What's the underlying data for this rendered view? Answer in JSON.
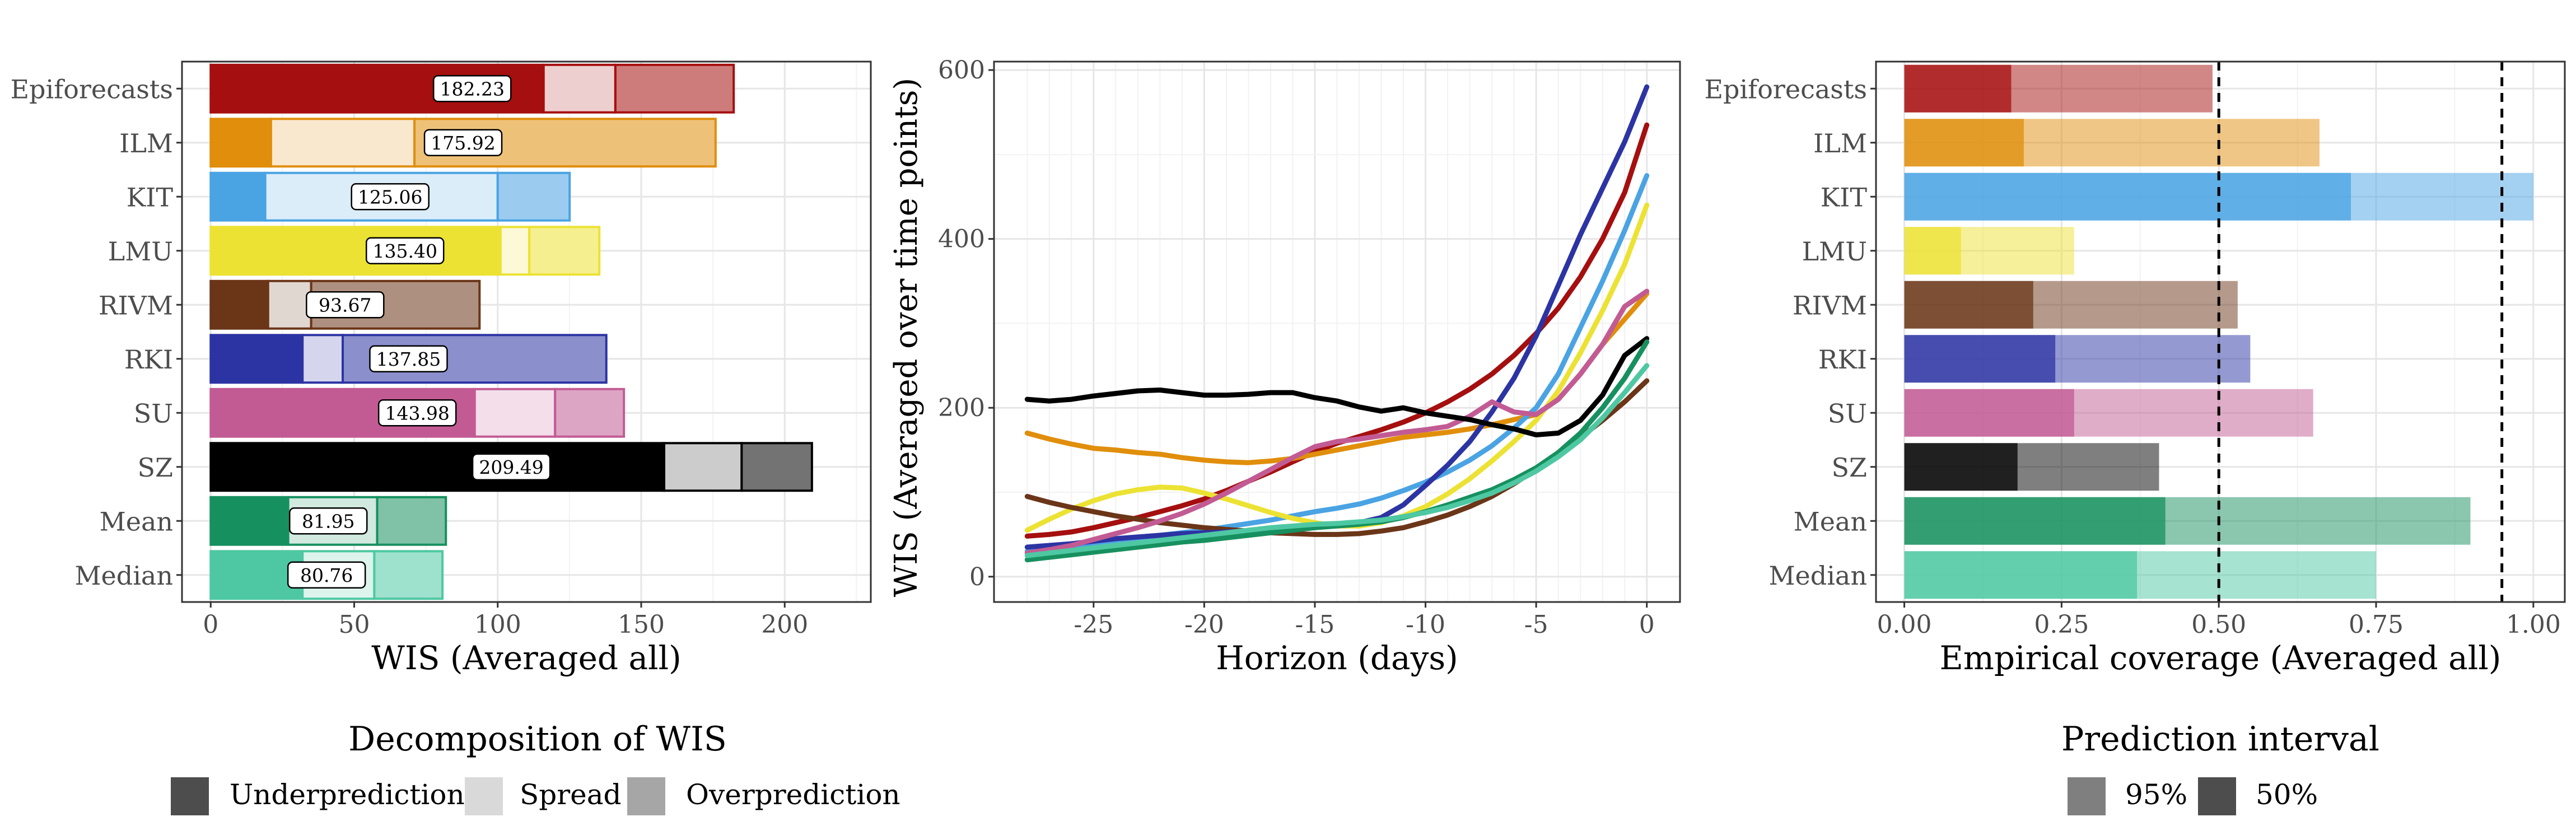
{
  "chart_data": [
    {
      "type": "bar",
      "subtype": "stacked-horizontal",
      "xlabel": "WIS (Averaged all)",
      "xlim": [
        -10,
        230
      ],
      "xticks": [
        0,
        50,
        100,
        150,
        200
      ],
      "grid": true,
      "models": [
        "Epiforecasts",
        "ILM",
        "KIT",
        "LMU",
        "RIVM",
        "RKI",
        "SU",
        "SZ",
        "Mean",
        "Median"
      ],
      "colors": [
        "#a50f0f",
        "#e08e0b",
        "#4aa3e3",
        "#ece233",
        "#6b3518",
        "#2c34a3",
        "#c25b94",
        "#000000",
        "#17905f",
        "#4ec8a2"
      ],
      "components": [
        "Underprediction",
        "Spread",
        "Overprediction"
      ],
      "underprediction": [
        116,
        21,
        19,
        101,
        20,
        32,
        92,
        158,
        27,
        32
      ],
      "spread": [
        25,
        50,
        81,
        10,
        15,
        14,
        28,
        27,
        31,
        25
      ],
      "overprediction": [
        41.23,
        104.92,
        25.06,
        24.4,
        58.67,
        91.85,
        23.98,
        24.49,
        23.95,
        23.76
      ],
      "totals": [
        "182.23",
        "175.92",
        "125.06",
        "135.40",
        "93.67",
        "137.85",
        "143.98",
        "209.49",
        "81.95",
        "80.76"
      ],
      "legend": {
        "title": "Decomposition of WIS",
        "items": [
          "Underprediction",
          "Spread",
          "Overprediction"
        ]
      }
    },
    {
      "type": "line",
      "xlabel": "Horizon (days)",
      "ylabel": "WIS (Averaged over time points)",
      "xlim": [
        -29.5,
        1.5
      ],
      "ylim": [
        -30,
        610
      ],
      "xticks": [
        -25,
        -20,
        -15,
        -10,
        -5,
        0
      ],
      "xtick_labels": [
        "-25",
        "-20",
        "-15",
        "-10",
        "-5",
        "0"
      ],
      "yticks": [
        0,
        200,
        400,
        600
      ],
      "grid": true,
      "x": [
        -28,
        -27,
        -26,
        -25,
        -24,
        -23,
        -22,
        -21,
        -20,
        -19,
        -18,
        -17,
        -16,
        -15,
        -14,
        -13,
        -12,
        -11,
        -10,
        -9,
        -8,
        -7,
        -6,
        -5,
        -4,
        -3,
        -2,
        -1,
        0
      ],
      "series": [
        {
          "color": "#a50f0f",
          "values": [
            48,
            50,
            53,
            58,
            64,
            70,
            77,
            84,
            92,
            102,
            113,
            124,
            136,
            148,
            158,
            166,
            174,
            183,
            194,
            207,
            222,
            240,
            262,
            288,
            318,
            355,
            400,
            455,
            535
          ]
        },
        {
          "color": "#e08e0b",
          "values": [
            170,
            163,
            157,
            152,
            150,
            147,
            145,
            141,
            138,
            136,
            135,
            137,
            140,
            145,
            150,
            155,
            160,
            165,
            168,
            171,
            175,
            180,
            186,
            192,
            210,
            240,
            275,
            305,
            335
          ]
        },
        {
          "color": "#4aa3e3",
          "values": [
            30,
            33,
            36,
            40,
            43,
            46,
            49,
            52,
            55,
            59,
            63,
            67,
            72,
            77,
            81,
            86,
            93,
            102,
            112,
            124,
            138,
            155,
            176,
            200,
            240,
            295,
            350,
            410,
            475
          ]
        },
        {
          "color": "#ece233",
          "values": [
            55,
            68,
            80,
            90,
            98,
            103,
            106,
            105,
            99,
            92,
            84,
            76,
            69,
            64,
            60,
            60,
            64,
            72,
            83,
            98,
            116,
            137,
            160,
            185,
            220,
            265,
            315,
            370,
            440
          ]
        },
        {
          "color": "#6b3518",
          "values": [
            95,
            88,
            82,
            77,
            72,
            68,
            64,
            61,
            58,
            56,
            54,
            52,
            51,
            50,
            50,
            51,
            54,
            58,
            65,
            73,
            83,
            95,
            110,
            127,
            145,
            165,
            185,
            207,
            232
          ]
        },
        {
          "color": "#2c34a3",
          "values": [
            35,
            37,
            39,
            42,
            45,
            47,
            49,
            51,
            52,
            53,
            54,
            56,
            58,
            60,
            62,
            64,
            70,
            85,
            108,
            132,
            160,
            195,
            235,
            285,
            345,
            405,
            460,
            515,
            580
          ]
        },
        {
          "color": "#c25b94",
          "values": [
            28,
            32,
            37,
            44,
            51,
            58,
            66,
            75,
            86,
            99,
            113,
            127,
            141,
            154,
            160,
            163,
            167,
            171,
            174,
            178,
            190,
            207,
            195,
            192,
            210,
            240,
            275,
            320,
            338
          ]
        },
        {
          "color": "#000000",
          "values": [
            210,
            208,
            210,
            214,
            217,
            220,
            221,
            218,
            215,
            215,
            216,
            218,
            218,
            212,
            208,
            201,
            196,
            200,
            194,
            190,
            186,
            180,
            175,
            168,
            170,
            185,
            215,
            262,
            282
          ]
        },
        {
          "color": "#17905f",
          "values": [
            20,
            23,
            26,
            29,
            32,
            35,
            38,
            41,
            43,
            46,
            49,
            52,
            55,
            58,
            60,
            62,
            65,
            70,
            77,
            85,
            94,
            103,
            115,
            129,
            147,
            170,
            200,
            235,
            278
          ]
        },
        {
          "color": "#4ec8a2",
          "values": [
            25,
            28,
            31,
            34,
            37,
            40,
            43,
            46,
            49,
            52,
            55,
            58,
            60,
            62,
            63,
            65,
            67,
            71,
            76,
            82,
            90,
            99,
            111,
            125,
            142,
            162,
            188,
            218,
            250
          ]
        }
      ]
    },
    {
      "type": "bar",
      "subtype": "overlapping-horizontal",
      "xlabel": "Empirical coverage (Averaged all)",
      "xlim": [
        -0.045,
        1.05
      ],
      "xticks": [
        0,
        0.25,
        0.5,
        0.75,
        1
      ],
      "xtick_labels": [
        "0.00",
        "0.25",
        "0.50",
        "0.75",
        "1.00"
      ],
      "reference_lines": [
        0.5,
        0.95
      ],
      "grid": true,
      "models": [
        "Epiforecasts",
        "ILM",
        "KIT",
        "LMU",
        "RIVM",
        "RKI",
        "SU",
        "SZ",
        "Mean",
        "Median"
      ],
      "coverage_95": [
        0.49,
        0.66,
        1.0,
        0.27,
        0.53,
        0.55,
        0.65,
        0.405,
        0.9,
        0.75
      ],
      "coverage_50": [
        0.17,
        0.19,
        0.71,
        0.09,
        0.205,
        0.24,
        0.27,
        0.18,
        0.415,
        0.37
      ],
      "legend": {
        "title": "Prediction interval",
        "items": [
          "95%",
          "50%"
        ]
      }
    }
  ]
}
